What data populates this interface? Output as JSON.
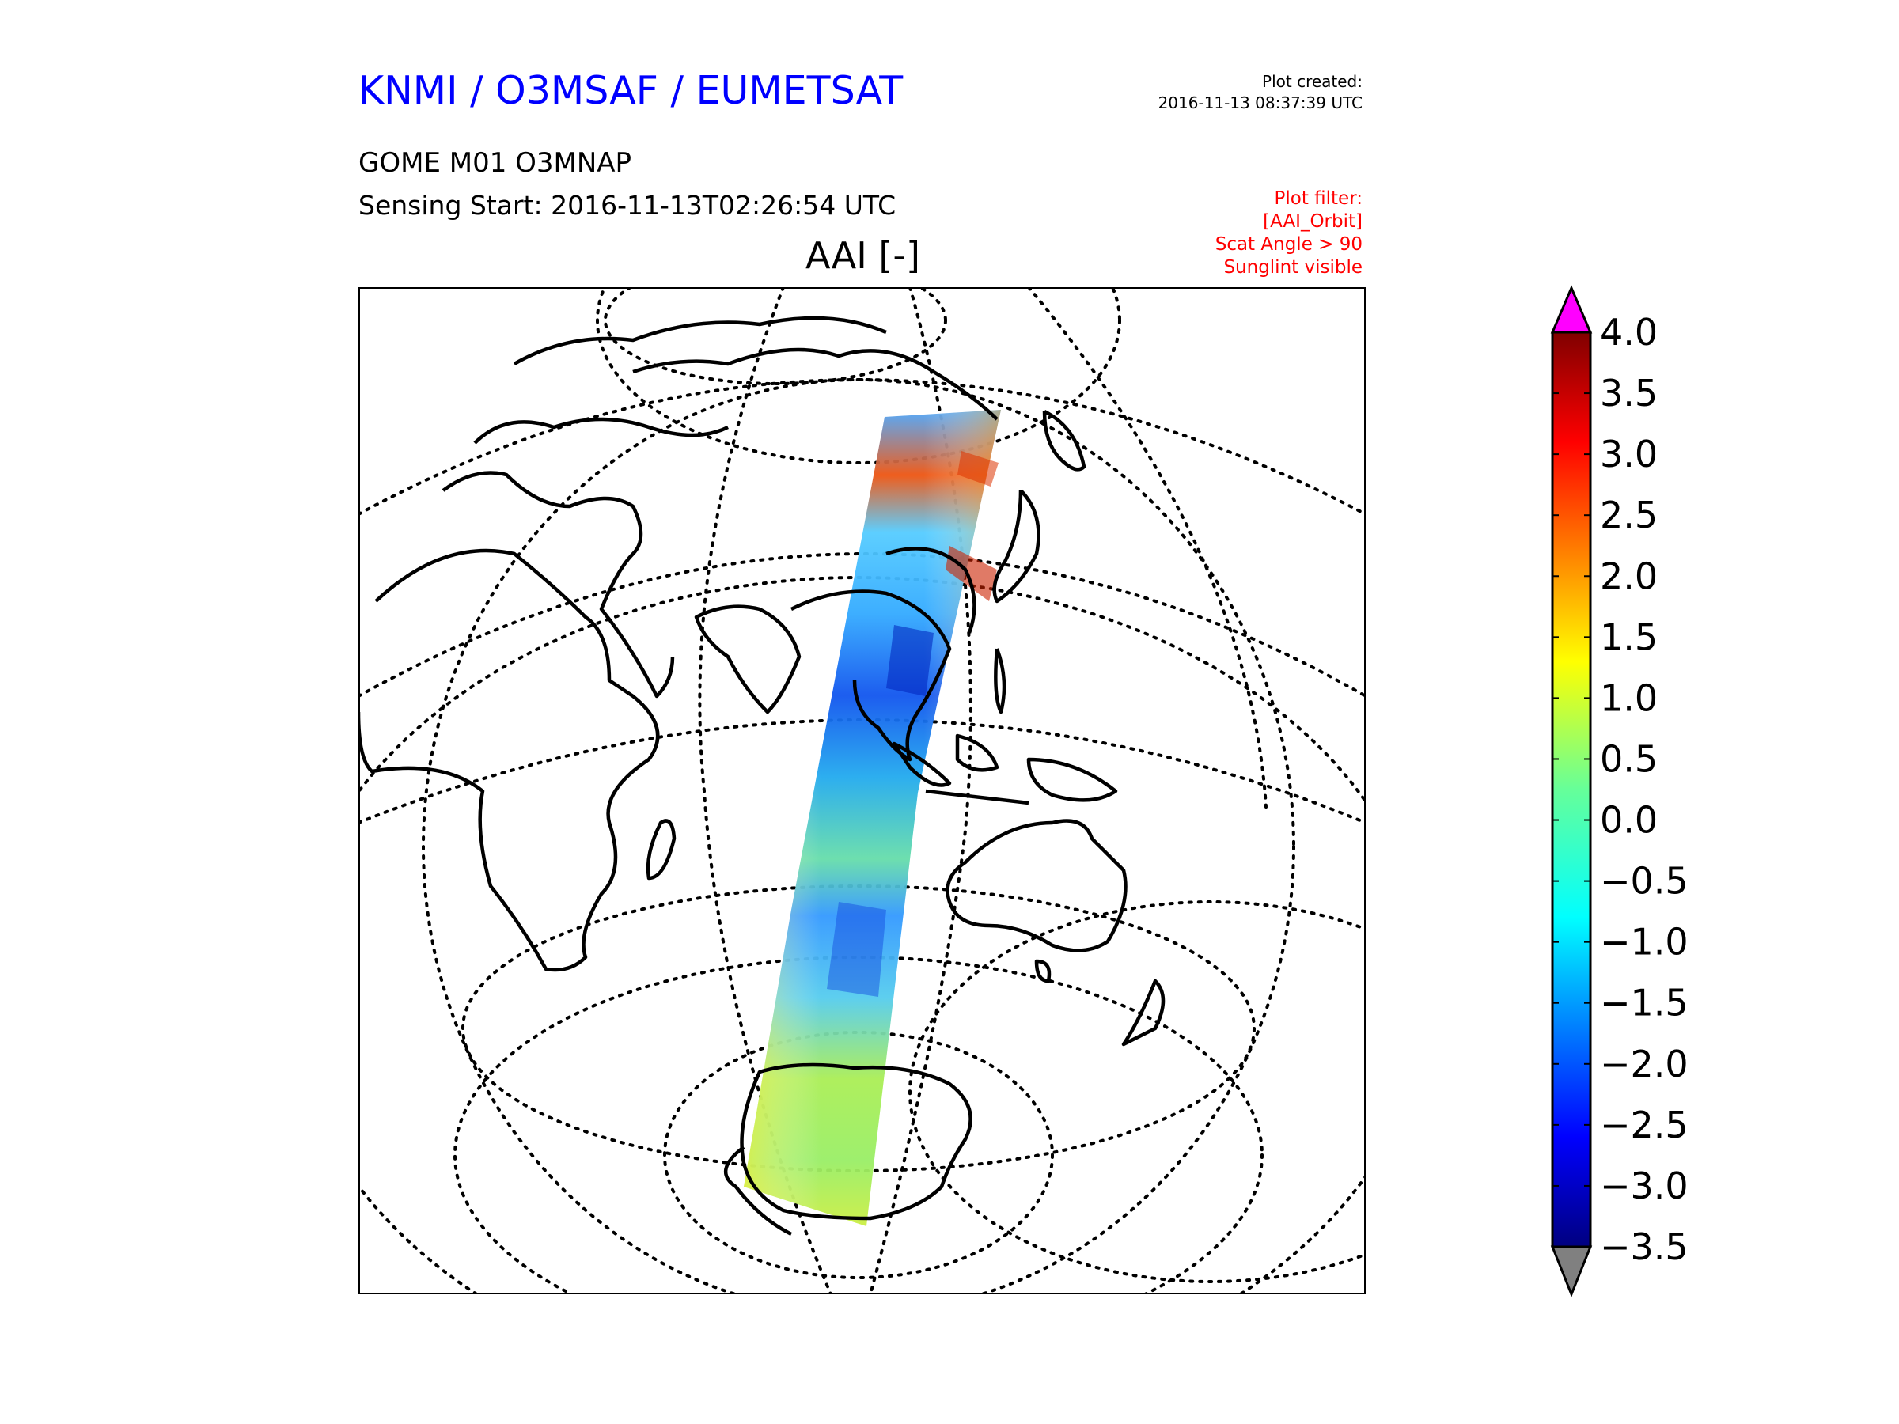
{
  "header": {
    "organization": "KNMI / O3MSAF / EUMETSAT",
    "plot_created_label": "Plot created:",
    "plot_created_time": "2016-11-13 08:37:39 UTC",
    "product": "GOME M01 O3MNAP",
    "sensing_start": "Sensing Start: 2016-11-13T02:26:54 UTC",
    "plot_filter_label": "Plot filter:",
    "plot_filter_items": [
      "[AAI_Orbit]",
      "Scat Angle > 90",
      "Sunglint visible"
    ]
  },
  "map": {
    "title": "AAI [-]",
    "projection": "orthographic",
    "coastlines": true,
    "graticule": "dotted",
    "swath_description_colors": {
      "low": "#0000cc",
      "mid": "#33ccff",
      "zero": "#66dd66",
      "high": "#ffff00",
      "max": "#cc0000"
    }
  },
  "colorbar": {
    "min": -3.5,
    "max": 4.0,
    "ticks": [
      4.0,
      3.5,
      3.0,
      2.5,
      2.0,
      1.5,
      1.0,
      0.5,
      0.0,
      -0.5,
      -1.0,
      -1.5,
      -2.0,
      -2.5,
      -3.0,
      -3.5
    ],
    "tick_labels": [
      "4.0",
      "3.5",
      "3.0",
      "2.5",
      "2.0",
      "1.5",
      "1.0",
      "0.5",
      "0.0",
      "−0.5",
      "−1.0",
      "−1.5",
      "−2.0",
      "−2.5",
      "−3.0",
      "−3.5"
    ],
    "colormap": "jet",
    "over_color": "#ff00ff",
    "under_color": "#808080"
  }
}
